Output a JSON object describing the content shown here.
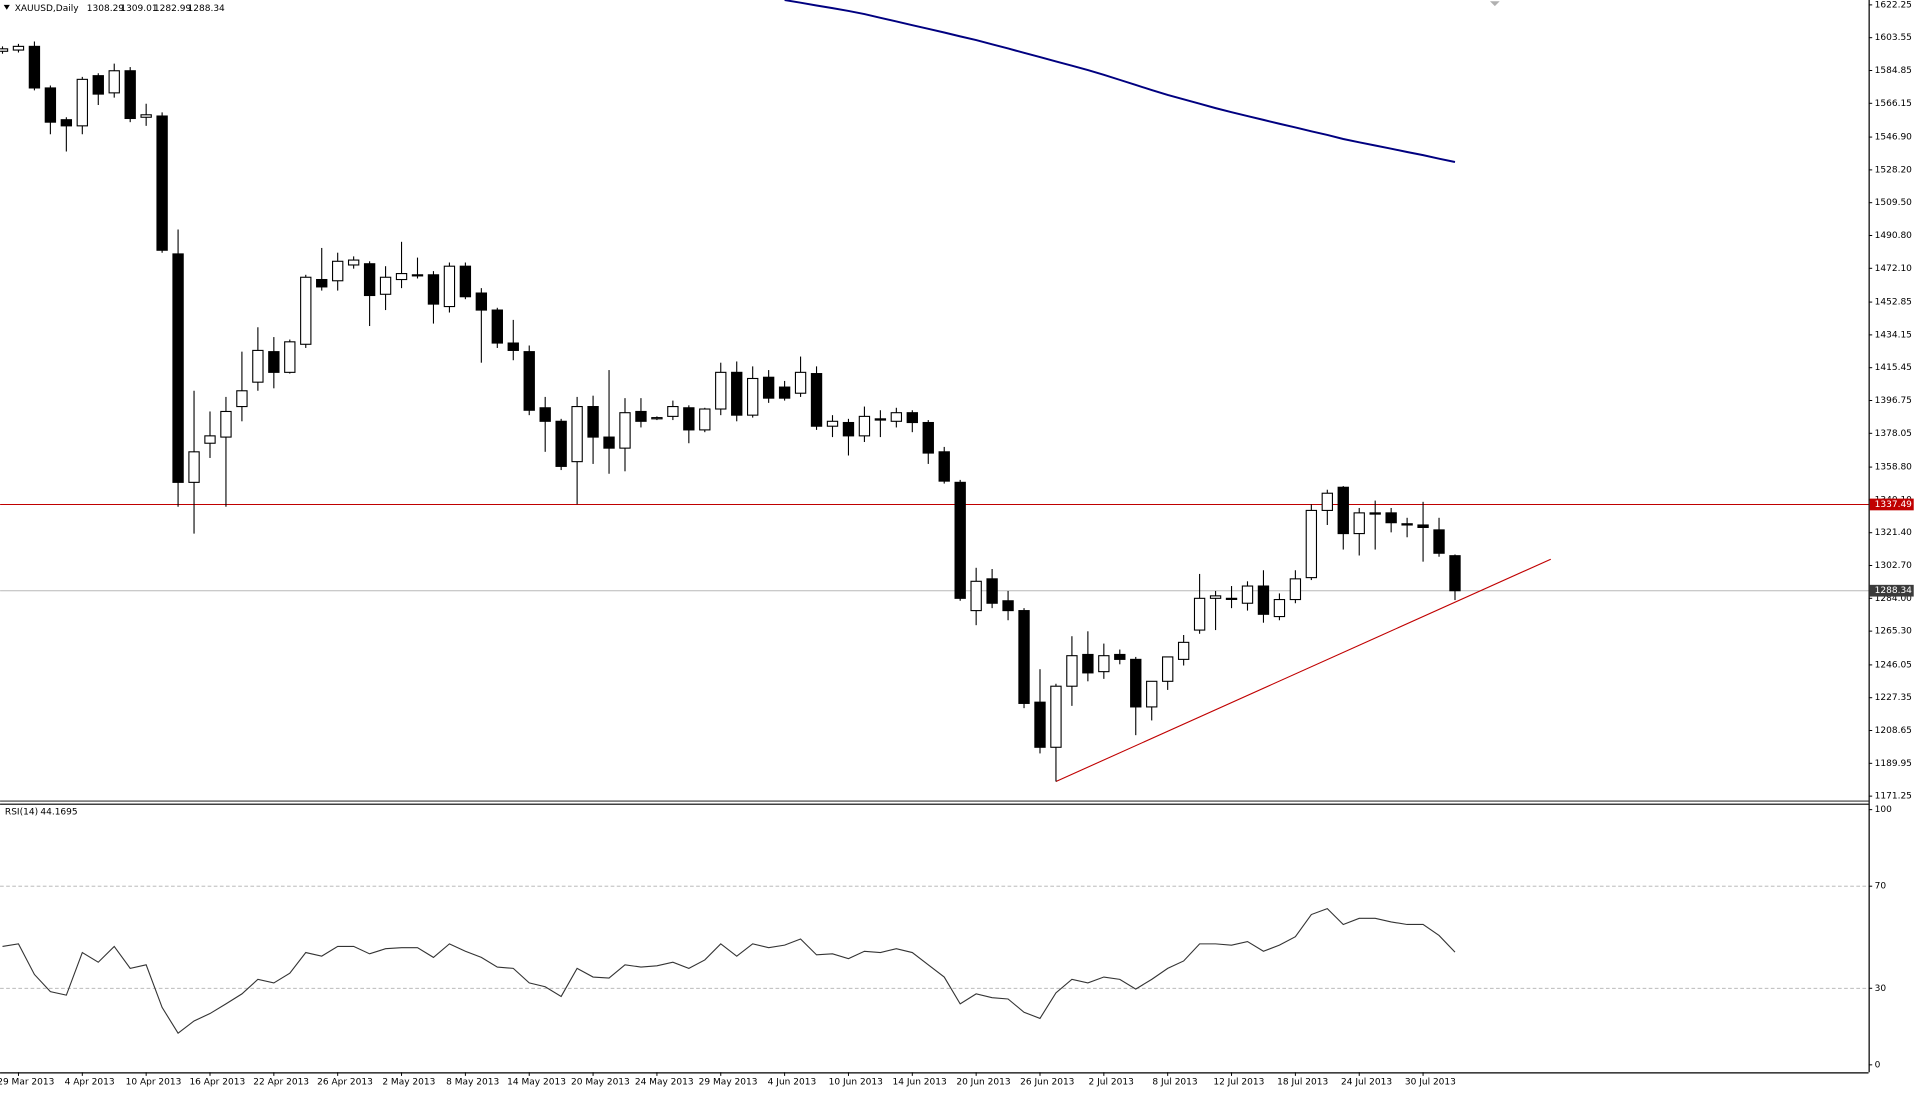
{
  "chart_data": [
    {
      "type": "candlestick",
      "title": "XAUUSD,Daily",
      "categories": [
        null,
        "29 Mar 2013",
        null,
        null,
        null,
        "4 Apr 2013",
        null,
        null,
        null,
        "10 Apr 2013",
        null,
        null,
        null,
        "16 Apr 2013",
        null,
        null,
        null,
        "22 Apr 2013",
        null,
        null,
        null,
        "26 Apr 2013",
        null,
        null,
        null,
        "2 May 2013",
        null,
        null,
        null,
        "8 May 2013",
        null,
        null,
        null,
        "14 May 2013",
        null,
        null,
        null,
        "20 May 2013",
        null,
        null,
        null,
        "24 May 2013",
        null,
        null,
        null,
        "29 May 2013",
        null,
        null,
        null,
        "4 Jun 2013",
        null,
        null,
        null,
        "10 Jun 2013",
        null,
        null,
        null,
        "14 Jun 2013",
        null,
        null,
        null,
        "20 Jun 2013",
        null,
        null,
        null,
        "26 Jun 2013",
        null,
        null,
        null,
        "2 Jul 2013",
        null,
        null,
        null,
        "8 Jul 2013",
        null,
        null,
        null,
        "12 Jul 2013",
        null,
        null,
        null,
        "18 Jul 2013",
        null,
        null,
        null,
        "24 Jul 2013",
        null,
        null,
        null,
        "30 Jul 2013",
        null,
        null
      ],
      "open": [
        1595.8,
        1596.5,
        1598.6,
        1574.9,
        1556.8,
        1553.3,
        1581.9,
        1572.1,
        1584.7,
        1558.2,
        1558.9,
        1480.3,
        1350.1,
        1372.4,
        1375.9,
        1393.3,
        1407.2,
        1424.6,
        1412.8,
        1428.8,
        1465.7,
        1465.0,
        1474.0,
        1474.7,
        1457.3,
        1465.7,
        1468.4,
        1468.4,
        1450.3,
        1473.3,
        1458.0,
        1448.3,
        1429.5,
        1424.6,
        1392.6,
        1384.9,
        1361.9,
        1393.3,
        1375.9,
        1369.6,
        1390.5,
        1386.3,
        1387.7,
        1392.6,
        1380.0,
        1391.9,
        1412.8,
        1388.4,
        1410.0,
        1404.4,
        1400.9,
        1412.1,
        1382.1,
        1384.2,
        1376.6,
        1386.3,
        1384.9,
        1389.8,
        1384.2,
        1367.5,
        1350.1,
        1277.0,
        1295.1,
        1282.6,
        1277.0,
        1224.8,
        1199.1,
        1233.9,
        1252.0,
        1242.2,
        1252.0,
        1249.2,
        1222.1,
        1236.7,
        1249.2,
        1265.9,
        1284.0,
        1284.0,
        1281.2,
        1291.0,
        1273.6,
        1283.3,
        1295.8,
        1334.1,
        1347.3,
        1320.9,
        1332.7,
        1332.7,
        1326.5,
        1325.8,
        1323.0,
        1308.29
      ],
      "high": [
        1598.6,
        1600.0,
        1601.4,
        1576.3,
        1558.2,
        1581.2,
        1583.3,
        1588.8,
        1586.8,
        1565.9,
        1561.0,
        1494.2,
        1402.3,
        1390.5,
        1398.8,
        1424.6,
        1438.5,
        1432.9,
        1431.5,
        1468.4,
        1483.7,
        1481.0,
        1478.9,
        1476.1,
        1473.3,
        1487.2,
        1478.2,
        1470.5,
        1475.4,
        1475.4,
        1460.8,
        1449.6,
        1442.7,
        1428.1,
        1398.8,
        1386.3,
        1398.8,
        1399.5,
        1414.1,
        1398.1,
        1398.1,
        1387.7,
        1396.7,
        1394.0,
        1392.6,
        1418.3,
        1419.0,
        1416.2,
        1414.1,
        1407.9,
        1421.8,
        1416.2,
        1388.4,
        1386.3,
        1393.3,
        1391.2,
        1392.6,
        1391.2,
        1385.6,
        1370.3,
        1351.5,
        1301.4,
        1300.7,
        1288.2,
        1278.4,
        1243.6,
        1235.3,
        1262.4,
        1265.2,
        1258.2,
        1254.8,
        1250.6,
        1236.7,
        1250.6,
        1263.1,
        1297.9,
        1288.2,
        1291.0,
        1293.7,
        1300.0,
        1286.8,
        1300.0,
        1337.6,
        1345.9,
        1348.0,
        1335.5,
        1339.7,
        1335.5,
        1329.9,
        1339.0,
        1329.9,
        1309.01
      ],
      "low": [
        1594.4,
        1595.1,
        1573.5,
        1548.5,
        1538.7,
        1548.5,
        1565.2,
        1569.4,
        1555.4,
        1553.3,
        1481.0,
        1336.2,
        1320.9,
        1364.0,
        1336.2,
        1384.9,
        1402.3,
        1403.7,
        1412.1,
        1426.7,
        1459.4,
        1459.4,
        1471.9,
        1439.2,
        1448.3,
        1460.8,
        1466.3,
        1440.6,
        1446.9,
        1454.5,
        1418.3,
        1426.7,
        1419.7,
        1388.4,
        1367.5,
        1357.1,
        1337.6,
        1360.6,
        1355.0,
        1356.4,
        1381.4,
        1385.6,
        1385.6,
        1372.4,
        1378.7,
        1388.4,
        1384.9,
        1387.0,
        1395.4,
        1396.7,
        1398.8,
        1380.0,
        1375.9,
        1365.4,
        1373.1,
        1375.9,
        1381.4,
        1378.7,
        1360.6,
        1349.4,
        1282.6,
        1268.7,
        1278.4,
        1271.5,
        1221.4,
        1195.6,
        1179.6,
        1222.7,
        1236.7,
        1238.1,
        1246.4,
        1206.0,
        1214.4,
        1231.8,
        1245.7,
        1263.8,
        1265.9,
        1278.4,
        1277.0,
        1270.1,
        1271.5,
        1281.2,
        1294.4,
        1325.8,
        1311.8,
        1308.4,
        1311.8,
        1321.6,
        1318.8,
        1304.9,
        1307.7,
        1282.99
      ],
      "close": [
        1597.2,
        1598.6,
        1574.9,
        1555.4,
        1553.3,
        1579.8,
        1571.4,
        1584.7,
        1557.5,
        1559.6,
        1482.4,
        1350.1,
        1367.5,
        1376.6,
        1390.5,
        1402.3,
        1425.3,
        1412.8,
        1430.2,
        1467.0,
        1461.5,
        1476.1,
        1476.8,
        1456.6,
        1467.0,
        1469.1,
        1468.4,
        1451.7,
        1473.3,
        1455.9,
        1448.3,
        1429.5,
        1425.3,
        1391.2,
        1384.9,
        1359.2,
        1393.3,
        1375.9,
        1369.6,
        1389.8,
        1384.9,
        1387.0,
        1393.3,
        1380.0,
        1391.9,
        1412.8,
        1388.4,
        1409.3,
        1398.1,
        1398.1,
        1412.8,
        1382.1,
        1384.9,
        1376.6,
        1387.7,
        1385.6,
        1389.8,
        1384.2,
        1366.8,
        1350.8,
        1284.0,
        1293.7,
        1281.2,
        1277.0,
        1224.1,
        1199.1,
        1233.9,
        1251.3,
        1241.5,
        1251.3,
        1249.2,
        1222.1,
        1236.7,
        1250.6,
        1258.9,
        1284.0,
        1285.4,
        1284.0,
        1291.0,
        1274.9,
        1283.3,
        1295.1,
        1334.1,
        1343.9,
        1320.9,
        1332.7,
        1332.0,
        1327.1,
        1325.8,
        1324.4,
        1309.7,
        1288.34
      ],
      "up_color": "#ffffff",
      "down_color": "#000000",
      "ma": {
        "color": "#000080",
        "values": [
          null,
          null,
          null,
          null,
          null,
          null,
          null,
          null,
          null,
          null,
          null,
          null,
          null,
          null,
          null,
          null,
          null,
          null,
          null,
          null,
          null,
          null,
          null,
          null,
          null,
          null,
          null,
          null,
          null,
          null,
          null,
          null,
          null,
          null,
          null,
          null,
          null,
          null,
          null,
          null,
          null,
          null,
          null,
          null,
          null,
          null,
          null,
          null,
          null,
          1625.0,
          1623.5,
          1621.9,
          1620.4,
          1618.8,
          1617.0,
          1614.9,
          1612.8,
          1610.7,
          1608.6,
          1606.5,
          1604.3,
          1602.2,
          1599.8,
          1597.4,
          1594.9,
          1592.5,
          1590.0,
          1587.6,
          1585.1,
          1582.4,
          1579.5,
          1576.6,
          1573.7,
          1570.9,
          1568.4,
          1565.9,
          1563.4,
          1561.1,
          1558.9,
          1556.7,
          1554.5,
          1552.4,
          1550.2,
          1548.1,
          1545.8,
          1543.9,
          1542.1,
          1540.3,
          1538.4,
          1536.6,
          1534.6,
          1532.7
        ]
      },
      "hline": {
        "value": 1337.49,
        "color": "#c00000"
      },
      "trendline": {
        "x": [
          66,
          97
        ],
        "values": [
          1179.6,
          1306.3
        ],
        "color": "#c00000"
      },
      "ylim": [
        1169.1,
        1625.03
      ],
      "yticks": [
        1622.25,
        1603.55,
        1584.85,
        1566.15,
        {
          "value": 1546.9,
          "label": "1546.90"
        },
        {
          "value": 1528.2,
          "label": "1528.20"
        },
        {
          "value": 1509.5,
          "label": "1509.50"
        },
        {
          "value": 1490.8,
          "label": "1490.80"
        },
        {
          "value": 1472.1,
          "label": "1472.10"
        },
        1452.85,
        1434.15,
        1415.45,
        1396.75,
        1378.05,
        {
          "value": 1358.8,
          "label": "1358.80"
        },
        {
          "value": 1340.1,
          "label": "1340.10"
        },
        {
          "value": 1321.4,
          "label": "1321.40"
        },
        {
          "value": 1302.7,
          "label": "1302.70"
        },
        {
          "value": 1284,
          "label": "1284.00"
        },
        {
          "value": 1265.3,
          "label": "1265.30"
        },
        1246.05,
        1227.35,
        1208.65,
        1189.95,
        1171.25
      ],
      "grid": false
    },
    {
      "type": "line",
      "title": "RSI(14)",
      "color": "#333333",
      "values": [
        46.4,
        47.4,
        35.4,
        28.7,
        27.3,
        44.0,
        40.2,
        46.4,
        37.8,
        39.2,
        22.5,
        12.4,
        17.2,
        20.1,
        23.9,
        27.8,
        33.5,
        32.1,
        35.9,
        44.0,
        42.6,
        46.4,
        46.4,
        43.5,
        45.5,
        45.9,
        45.9,
        42.1,
        47.4,
        44.5,
        42.1,
        38.3,
        37.8,
        32.1,
        30.6,
        26.8,
        37.8,
        34.4,
        34.0,
        39.2,
        38.3,
        38.8,
        40.2,
        37.8,
        41.1,
        47.4,
        42.6,
        47.4,
        45.9,
        46.9,
        49.3,
        43.1,
        43.5,
        41.6,
        44.5,
        44.0,
        45.5,
        44.0,
        39.2,
        34.4,
        23.9,
        27.8,
        26.3,
        25.8,
        20.6,
        18.2,
        28.2,
        33.5,
        32.1,
        34.4,
        33.5,
        29.7,
        33.5,
        37.8,
        40.7,
        47.4,
        47.4,
        46.9,
        48.3,
        44.5,
        46.9,
        50.2,
        58.9,
        61.2,
        55.0,
        57.4,
        57.4,
        56.0,
        55.0,
        55.0,
        50.7,
        44.1695
      ],
      "ylim": [
        -2.9,
        101.9
      ],
      "yticks": [
        100,
        70,
        30,
        0
      ],
      "grid": true
    }
  ]
}
